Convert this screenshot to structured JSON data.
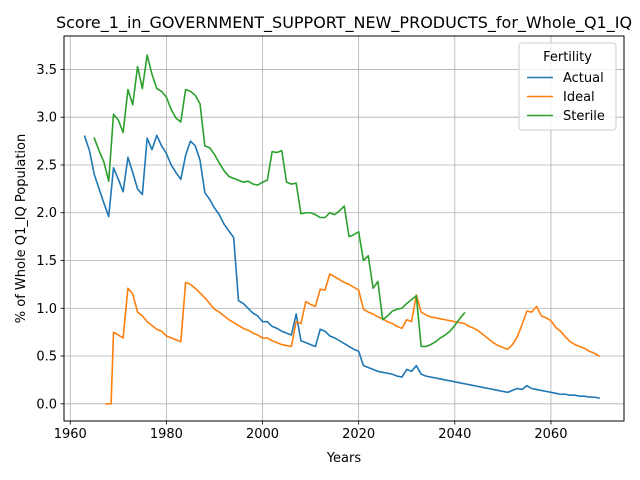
{
  "chart_data": {
    "type": "line",
    "title": "Score_1_in_GOVERNMENT_SUPPORT_NEW_PRODUCTS_for_Whole_Q1_IQ",
    "xlabel": "Years",
    "ylabel": "% of Whole Q1_IQ Population",
    "xlim": [
      1958.7,
      2075.2
    ],
    "ylim": [
      -0.18,
      3.85
    ],
    "xticks": [
      1960,
      1980,
      2000,
      2020,
      2040,
      2060
    ],
    "yticks": [
      0.0,
      0.5,
      1.0,
      1.5,
      2.0,
      2.5,
      3.0,
      3.5
    ],
    "grid": true,
    "legend": {
      "title": "Fertility",
      "placement": "top-right"
    },
    "series": [
      {
        "name": "Actual",
        "color": "#1f77b4",
        "points": [
          [
            1963,
            2.8
          ],
          [
            1964,
            2.65
          ],
          [
            1965,
            2.4
          ],
          [
            1966,
            2.25
          ],
          [
            1967,
            2.1
          ],
          [
            1968,
            1.96
          ],
          [
            1969,
            2.47
          ],
          [
            1970,
            2.35
          ],
          [
            1971,
            2.22
          ],
          [
            1972,
            2.58
          ],
          [
            1973,
            2.42
          ],
          [
            1974,
            2.25
          ],
          [
            1975,
            2.19
          ],
          [
            1976,
            2.78
          ],
          [
            1977,
            2.66
          ],
          [
            1978,
            2.81
          ],
          [
            1979,
            2.7
          ],
          [
            1980,
            2.62
          ],
          [
            1981,
            2.5
          ],
          [
            1982,
            2.42
          ],
          [
            1983,
            2.35
          ],
          [
            1984,
            2.6
          ],
          [
            1985,
            2.75
          ],
          [
            1986,
            2.7
          ],
          [
            1987,
            2.55
          ],
          [
            1988,
            2.21
          ],
          [
            1989,
            2.14
          ],
          [
            1990,
            2.05
          ],
          [
            1991,
            1.98
          ],
          [
            1992,
            1.88
          ],
          [
            1993,
            1.81
          ],
          [
            1994,
            1.74
          ],
          [
            1995,
            1.08
          ],
          [
            1996,
            1.05
          ],
          [
            1997,
            1.0
          ],
          [
            1998,
            0.95
          ],
          [
            1999,
            0.92
          ],
          [
            2000,
            0.86
          ],
          [
            2001,
            0.86
          ],
          [
            2002,
            0.81
          ],
          [
            2003,
            0.79
          ],
          [
            2004,
            0.76
          ],
          [
            2005,
            0.74
          ],
          [
            2006,
            0.72
          ],
          [
            2007,
            0.94
          ],
          [
            2008,
            0.66
          ],
          [
            2009,
            0.64
          ],
          [
            2010,
            0.62
          ],
          [
            2011,
            0.6
          ],
          [
            2012,
            0.78
          ],
          [
            2013,
            0.76
          ],
          [
            2014,
            0.71
          ],
          [
            2015,
            0.69
          ],
          [
            2016,
            0.66
          ],
          [
            2017,
            0.63
          ],
          [
            2018,
            0.6
          ],
          [
            2019,
            0.57
          ],
          [
            2020,
            0.55
          ],
          [
            2021,
            0.4
          ],
          [
            2022,
            0.38
          ],
          [
            2023,
            0.36
          ],
          [
            2024,
            0.34
          ],
          [
            2025,
            0.33
          ],
          [
            2026,
            0.32
          ],
          [
            2027,
            0.31
          ],
          [
            2028,
            0.29
          ],
          [
            2029,
            0.28
          ],
          [
            2030,
            0.36
          ],
          [
            2031,
            0.34
          ],
          [
            2032,
            0.4
          ],
          [
            2033,
            0.31
          ],
          [
            2034,
            0.29
          ],
          [
            2035,
            0.28
          ],
          [
            2036,
            0.27
          ],
          [
            2037,
            0.26
          ],
          [
            2038,
            0.25
          ],
          [
            2039,
            0.24
          ],
          [
            2040,
            0.23
          ],
          [
            2041,
            0.22
          ],
          [
            2042,
            0.21
          ],
          [
            2043,
            0.2
          ],
          [
            2044,
            0.19
          ],
          [
            2045,
            0.18
          ],
          [
            2046,
            0.17
          ],
          [
            2047,
            0.16
          ],
          [
            2048,
            0.15
          ],
          [
            2049,
            0.14
          ],
          [
            2050,
            0.13
          ],
          [
            2051,
            0.12
          ],
          [
            2052,
            0.14
          ],
          [
            2053,
            0.16
          ],
          [
            2054,
            0.15
          ],
          [
            2055,
            0.19
          ],
          [
            2056,
            0.16
          ],
          [
            2057,
            0.15
          ],
          [
            2058,
            0.14
          ],
          [
            2059,
            0.13
          ],
          [
            2060,
            0.12
          ],
          [
            2061,
            0.11
          ],
          [
            2062,
            0.1
          ],
          [
            2063,
            0.1
          ],
          [
            2064,
            0.09
          ],
          [
            2065,
            0.09
          ],
          [
            2066,
            0.08
          ],
          [
            2067,
            0.08
          ],
          [
            2068,
            0.07
          ],
          [
            2069,
            0.07
          ],
          [
            2070,
            0.06
          ]
        ]
      },
      {
        "name": "Ideal",
        "color": "#ff7f0e",
        "points": [
          [
            1967.5,
            0.0
          ],
          [
            1968.5,
            0.0
          ],
          [
            1969,
            0.75
          ],
          [
            1970,
            0.72
          ],
          [
            1971,
            0.69
          ],
          [
            1972,
            1.21
          ],
          [
            1973,
            1.15
          ],
          [
            1974,
            0.96
          ],
          [
            1975,
            0.92
          ],
          [
            1976,
            0.86
          ],
          [
            1977,
            0.82
          ],
          [
            1978,
            0.78
          ],
          [
            1979,
            0.76
          ],
          [
            1980,
            0.71
          ],
          [
            1981,
            0.69
          ],
          [
            1982,
            0.67
          ],
          [
            1983,
            0.65
          ],
          [
            1984,
            1.27
          ],
          [
            1985,
            1.25
          ],
          [
            1986,
            1.21
          ],
          [
            1987,
            1.16
          ],
          [
            1988,
            1.11
          ],
          [
            1989,
            1.05
          ],
          [
            1990,
            0.99
          ],
          [
            1991,
            0.96
          ],
          [
            1992,
            0.92
          ],
          [
            1993,
            0.88
          ],
          [
            1994,
            0.85
          ],
          [
            1995,
            0.82
          ],
          [
            1996,
            0.79
          ],
          [
            1997,
            0.77
          ],
          [
            1998,
            0.74
          ],
          [
            1999,
            0.72
          ],
          [
            2000,
            0.69
          ],
          [
            2001,
            0.69
          ],
          [
            2002,
            0.66
          ],
          [
            2003,
            0.64
          ],
          [
            2004,
            0.62
          ],
          [
            2005,
            0.61
          ],
          [
            2006,
            0.6
          ],
          [
            2007,
            0.86
          ],
          [
            2008,
            0.84
          ],
          [
            2009,
            1.07
          ],
          [
            2010,
            1.04
          ],
          [
            2011,
            1.02
          ],
          [
            2012,
            1.2
          ],
          [
            2013,
            1.19
          ],
          [
            2014,
            1.36
          ],
          [
            2015,
            1.33
          ],
          [
            2016,
            1.3
          ],
          [
            2017,
            1.27
          ],
          [
            2018,
            1.25
          ],
          [
            2019,
            1.22
          ],
          [
            2020,
            1.19
          ],
          [
            2021,
            0.99
          ],
          [
            2022,
            0.96
          ],
          [
            2023,
            0.94
          ],
          [
            2024,
            0.91
          ],
          [
            2025,
            0.89
          ],
          [
            2026,
            0.86
          ],
          [
            2027,
            0.84
          ],
          [
            2028,
            0.81
          ],
          [
            2029,
            0.79
          ],
          [
            2030,
            0.88
          ],
          [
            2031,
            0.86
          ],
          [
            2032,
            1.14
          ],
          [
            2033,
            0.96
          ],
          [
            2034,
            0.93
          ],
          [
            2035,
            0.91
          ],
          [
            2036,
            0.9
          ],
          [
            2037,
            0.89
          ],
          [
            2038,
            0.88
          ],
          [
            2039,
            0.87
          ],
          [
            2040,
            0.86
          ],
          [
            2041,
            0.85
          ],
          [
            2042,
            0.84
          ],
          [
            2043,
            0.81
          ],
          [
            2044,
            0.79
          ],
          [
            2045,
            0.76
          ],
          [
            2046,
            0.72
          ],
          [
            2047,
            0.68
          ],
          [
            2048,
            0.64
          ],
          [
            2049,
            0.61
          ],
          [
            2050,
            0.59
          ],
          [
            2051,
            0.57
          ],
          [
            2052,
            0.62
          ],
          [
            2053,
            0.7
          ],
          [
            2054,
            0.83
          ],
          [
            2055,
            0.97
          ],
          [
            2056,
            0.96
          ],
          [
            2057,
            1.02
          ],
          [
            2058,
            0.92
          ],
          [
            2059,
            0.9
          ],
          [
            2060,
            0.87
          ],
          [
            2061,
            0.8
          ],
          [
            2062,
            0.76
          ],
          [
            2063,
            0.7
          ],
          [
            2064,
            0.65
          ],
          [
            2065,
            0.62
          ],
          [
            2066,
            0.6
          ],
          [
            2067,
            0.58
          ],
          [
            2068,
            0.55
          ],
          [
            2069,
            0.53
          ],
          [
            2070,
            0.5
          ]
        ]
      },
      {
        "name": "Sterile",
        "color": "#2ca02c",
        "points": [
          [
            1965,
            2.78
          ],
          [
            1966,
            2.65
          ],
          [
            1967,
            2.53
          ],
          [
            1968,
            2.33
          ],
          [
            1969,
            3.03
          ],
          [
            1970,
            2.97
          ],
          [
            1971,
            2.84
          ],
          [
            1972,
            3.29
          ],
          [
            1973,
            3.13
          ],
          [
            1974,
            3.53
          ],
          [
            1975,
            3.3
          ],
          [
            1976,
            3.65
          ],
          [
            1977,
            3.45
          ],
          [
            1978,
            3.3
          ],
          [
            1979,
            3.27
          ],
          [
            1980,
            3.21
          ],
          [
            1981,
            3.08
          ],
          [
            1982,
            2.99
          ],
          [
            1983,
            2.95
          ],
          [
            1984,
            3.29
          ],
          [
            1985,
            3.27
          ],
          [
            1986,
            3.23
          ],
          [
            1987,
            3.14
          ],
          [
            1988,
            2.7
          ],
          [
            1989,
            2.68
          ],
          [
            1990,
            2.61
          ],
          [
            1991,
            2.52
          ],
          [
            1992,
            2.44
          ],
          [
            1993,
            2.38
          ],
          [
            1994,
            2.36
          ],
          [
            1995,
            2.34
          ],
          [
            1996,
            2.32
          ],
          [
            1997,
            2.33
          ],
          [
            1998,
            2.3
          ],
          [
            1999,
            2.29
          ],
          [
            2000,
            2.32
          ],
          [
            2001,
            2.34
          ],
          [
            2002,
            2.64
          ],
          [
            2003,
            2.63
          ],
          [
            2004,
            2.65
          ],
          [
            2005,
            2.32
          ],
          [
            2006,
            2.3
          ],
          [
            2007,
            2.31
          ],
          [
            2008,
            1.99
          ],
          [
            2009,
            2.0
          ],
          [
            2010,
            2.0
          ],
          [
            2011,
            1.98
          ],
          [
            2012,
            1.95
          ],
          [
            2013,
            1.95
          ],
          [
            2014,
            2.0
          ],
          [
            2015,
            1.98
          ],
          [
            2016,
            2.02
          ],
          [
            2017,
            2.07
          ],
          [
            2018,
            1.75
          ],
          [
            2019,
            1.77
          ],
          [
            2020,
            1.8
          ],
          [
            2021,
            1.5
          ],
          [
            2022,
            1.55
          ],
          [
            2023,
            1.21
          ],
          [
            2024,
            1.28
          ],
          [
            2025,
            0.88
          ],
          [
            2026,
            0.92
          ],
          [
            2027,
            0.97
          ],
          [
            2028,
            0.99
          ],
          [
            2029,
            1.0
          ],
          [
            2030,
            1.05
          ],
          [
            2031,
            1.09
          ],
          [
            2032,
            1.13
          ],
          [
            2033,
            0.6
          ],
          [
            2034,
            0.6
          ],
          [
            2035,
            0.62
          ],
          [
            2036,
            0.65
          ],
          [
            2037,
            0.69
          ],
          [
            2038,
            0.72
          ],
          [
            2039,
            0.76
          ],
          [
            2040,
            0.82
          ],
          [
            2041,
            0.89
          ],
          [
            2042,
            0.95
          ]
        ]
      }
    ]
  }
}
